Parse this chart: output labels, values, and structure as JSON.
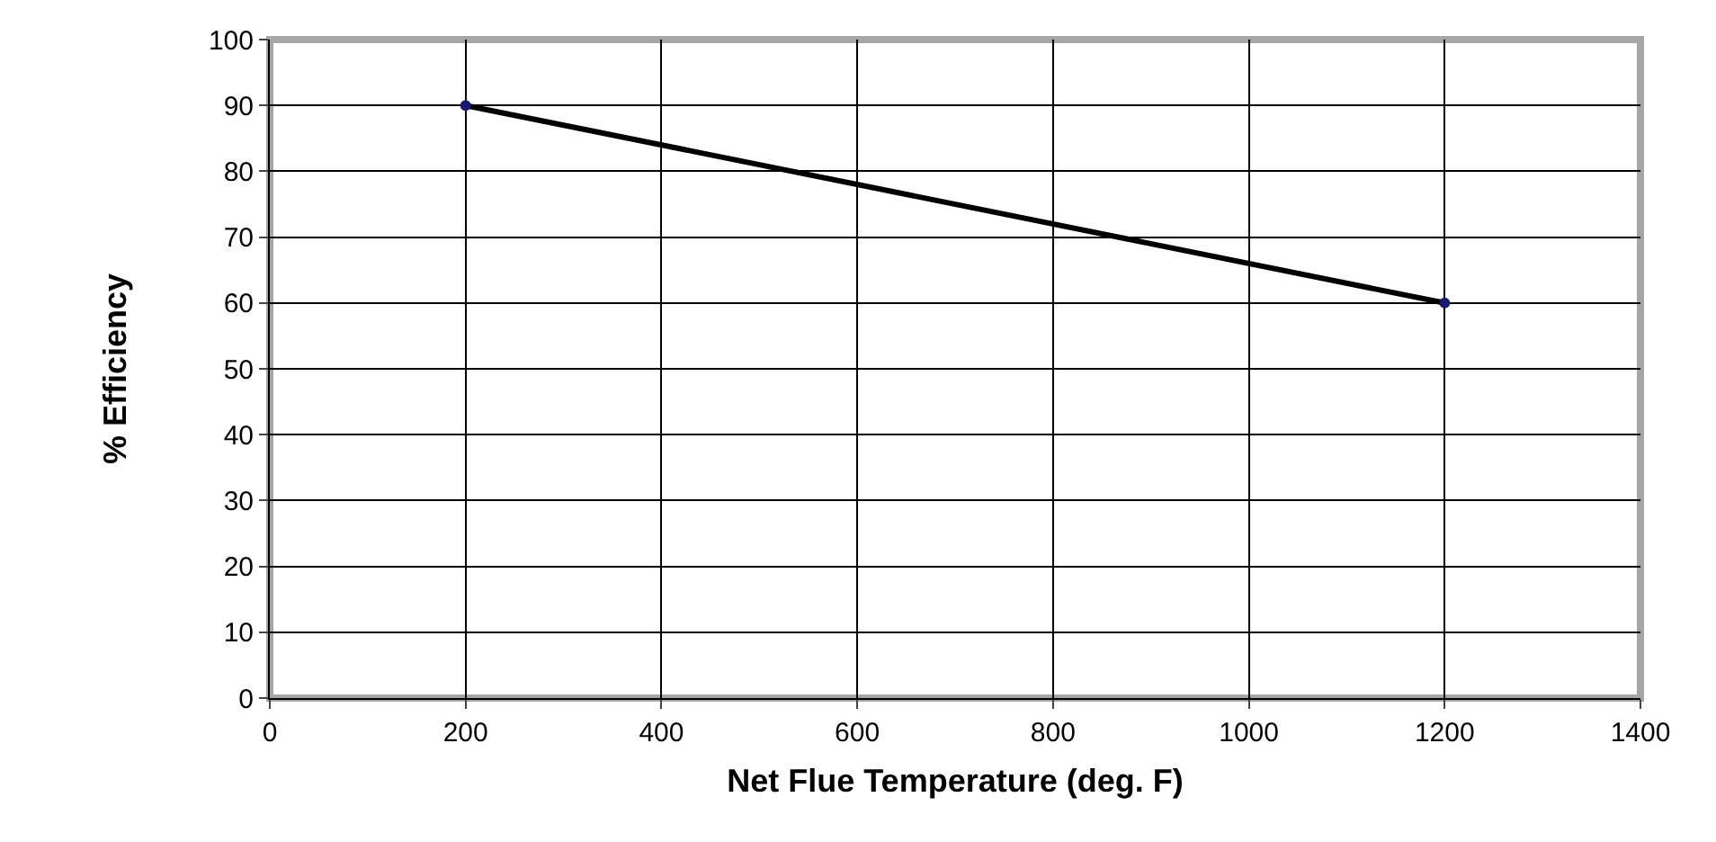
{
  "chart_data": {
    "type": "line",
    "xlabel": "Net Flue Temperature (deg. F)",
    "ylabel": "% Efficiency",
    "x": [
      200,
      1200
    ],
    "series": [
      {
        "color": "#000000",
        "values": [
          90,
          60
        ]
      }
    ],
    "xlim": [
      0,
      1400
    ],
    "xticks": [
      0,
      200,
      400,
      600,
      800,
      1000,
      1200,
      1400
    ],
    "ylim": [
      0,
      100
    ],
    "yticks": [
      0,
      10,
      20,
      30,
      40,
      50,
      60,
      70,
      80,
      90,
      100
    ],
    "grid": true,
    "legend": false,
    "marker": "circle",
    "line_style": "solid"
  }
}
